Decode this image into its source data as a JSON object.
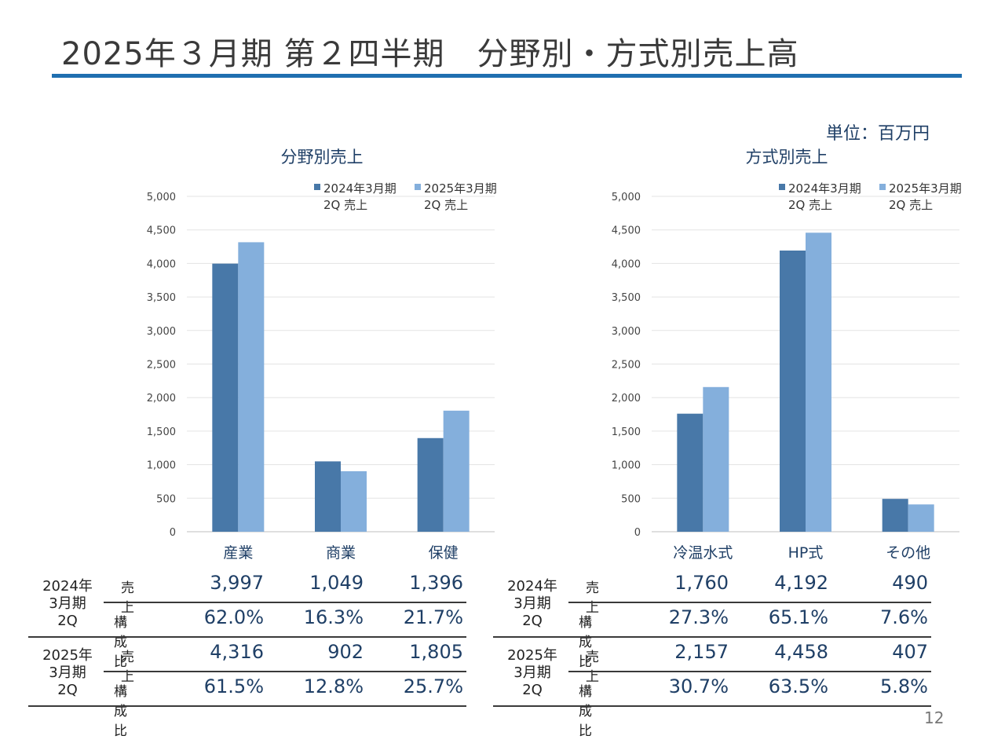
{
  "page": {
    "title": "2025年３月期 第２四半期　分野別・方式別売上高",
    "unit": "単位：百万円",
    "page_number": "12"
  },
  "colors": {
    "series1": "#4878a8",
    "series2": "#84afdc",
    "title_rule": "#1f6fb0",
    "chart_title": "#1f3f66"
  },
  "chart_data": [
    {
      "type": "bar",
      "title": "分野別売上",
      "categories": [
        "産業",
        "商業",
        "保健"
      ],
      "series": [
        {
          "name": "2024年3月期 2Q 売上",
          "legend_line1": "2024年3月期",
          "legend_line2": "2Q 売上",
          "values": [
            3997,
            1049,
            1396
          ]
        },
        {
          "name": "2025年3月期 2Q 売上",
          "legend_line1": "2025年3月期",
          "legend_line2": "2Q 売上",
          "values": [
            4316,
            902,
            1805
          ]
        }
      ],
      "ylim": [
        0,
        5000
      ],
      "yticks": [
        "0",
        "500",
        "1,000",
        "1,500",
        "2,000",
        "2,500",
        "3,000",
        "3,500",
        "4,000",
        "4,500",
        "5,000"
      ],
      "grid": true,
      "legend_position": "top-right"
    },
    {
      "type": "bar",
      "title": "方式別売上",
      "categories": [
        "冷温水式",
        "HP式",
        "その他"
      ],
      "series": [
        {
          "name": "2024年3月期 2Q 売上",
          "legend_line1": "2024年3月期",
          "legend_line2": "2Q 売上",
          "values": [
            1760,
            4192,
            490
          ]
        },
        {
          "name": "2025年3月期 2Q 売上",
          "legend_line1": "2025年3月期",
          "legend_line2": "2Q 売上",
          "values": [
            2157,
            4458,
            407
          ]
        }
      ],
      "ylim": [
        0,
        5000
      ],
      "yticks": [
        "0",
        "500",
        "1,000",
        "1,500",
        "2,000",
        "2,500",
        "3,000",
        "3,500",
        "4,000",
        "4,500",
        "5,000"
      ],
      "grid": true,
      "legend_position": "top-right"
    }
  ],
  "tables": [
    {
      "groups": [
        {
          "label": [
            "2024年",
            "3月期",
            "2Q"
          ],
          "rows": [
            {
              "label": "売上",
              "values": [
                "3,997",
                "1,049",
                "1,396"
              ]
            },
            {
              "label": "構成比",
              "values": [
                "62.0%",
                "16.3%",
                "21.7%"
              ]
            }
          ]
        },
        {
          "label": [
            "2025年",
            "3月期",
            "2Q"
          ],
          "rows": [
            {
              "label": "売上",
              "values": [
                "4,316",
                "902",
                "1,805"
              ]
            },
            {
              "label": "構成比",
              "values": [
                "61.5%",
                "12.8%",
                "25.7%"
              ]
            }
          ]
        }
      ]
    },
    {
      "groups": [
        {
          "label": [
            "2024年",
            "3月期",
            "2Q"
          ],
          "rows": [
            {
              "label": "売上",
              "values": [
                "1,760",
                "4,192",
                "490"
              ]
            },
            {
              "label": "構成比",
              "values": [
                "27.3%",
                "65.1%",
                "7.6%"
              ]
            }
          ]
        },
        {
          "label": [
            "2025年",
            "3月期",
            "2Q"
          ],
          "rows": [
            {
              "label": "売上",
              "values": [
                "2,157",
                "4,458",
                "407"
              ]
            },
            {
              "label": "構成比",
              "values": [
                "30.7%",
                "63.5%",
                "5.8%"
              ]
            }
          ]
        }
      ]
    }
  ]
}
